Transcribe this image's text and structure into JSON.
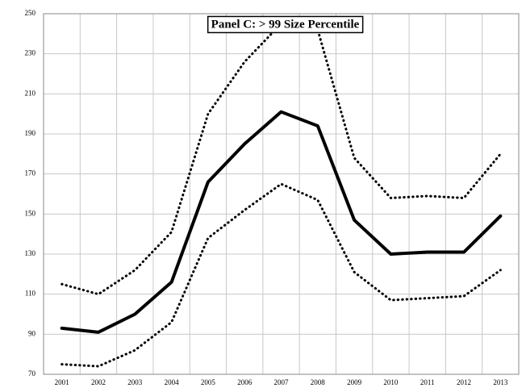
{
  "chart_data": {
    "type": "line",
    "title": "Panel C: > 99 Size Percentile",
    "categories": [
      "2001",
      "2002",
      "2003",
      "2004",
      "2005",
      "2006",
      "2007",
      "2008",
      "2009",
      "2010",
      "2011",
      "2012",
      "2013"
    ],
    "series": [
      {
        "color": "#000000",
        "style": "dotted",
        "values": [
          115,
          110,
          122,
          141,
          200,
          226,
          245,
          242,
          178,
          158,
          159,
          158,
          180
        ]
      },
      {
        "color": "#000000",
        "style": "solid",
        "values": [
          93,
          91,
          100,
          116,
          166,
          185,
          201,
          194,
          147,
          130,
          131,
          131,
          149
        ]
      },
      {
        "color": "#000000",
        "style": "dotted",
        "values": [
          75,
          74,
          82,
          96,
          138,
          152,
          165,
          157,
          121,
          107,
          108,
          109,
          122
        ]
      }
    ],
    "ylim": [
      70,
      250
    ],
    "yticks": [
      70,
      90,
      110,
      130,
      150,
      170,
      190,
      210,
      230,
      250
    ],
    "grid": true
  }
}
